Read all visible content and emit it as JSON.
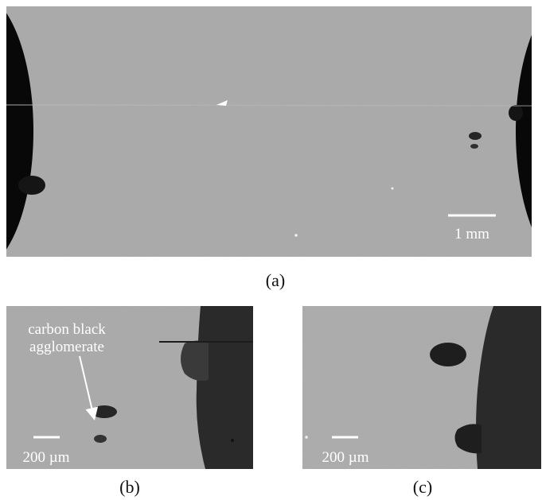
{
  "panels": [
    {
      "label": "(a)",
      "scale_bar": "1 mm"
    },
    {
      "label": "(b)",
      "scale_bar": "200 µm",
      "annotation": [
        "carbon black",
        "agglomerate"
      ]
    },
    {
      "label": "(c)",
      "scale_bar": "200 µm"
    }
  ]
}
